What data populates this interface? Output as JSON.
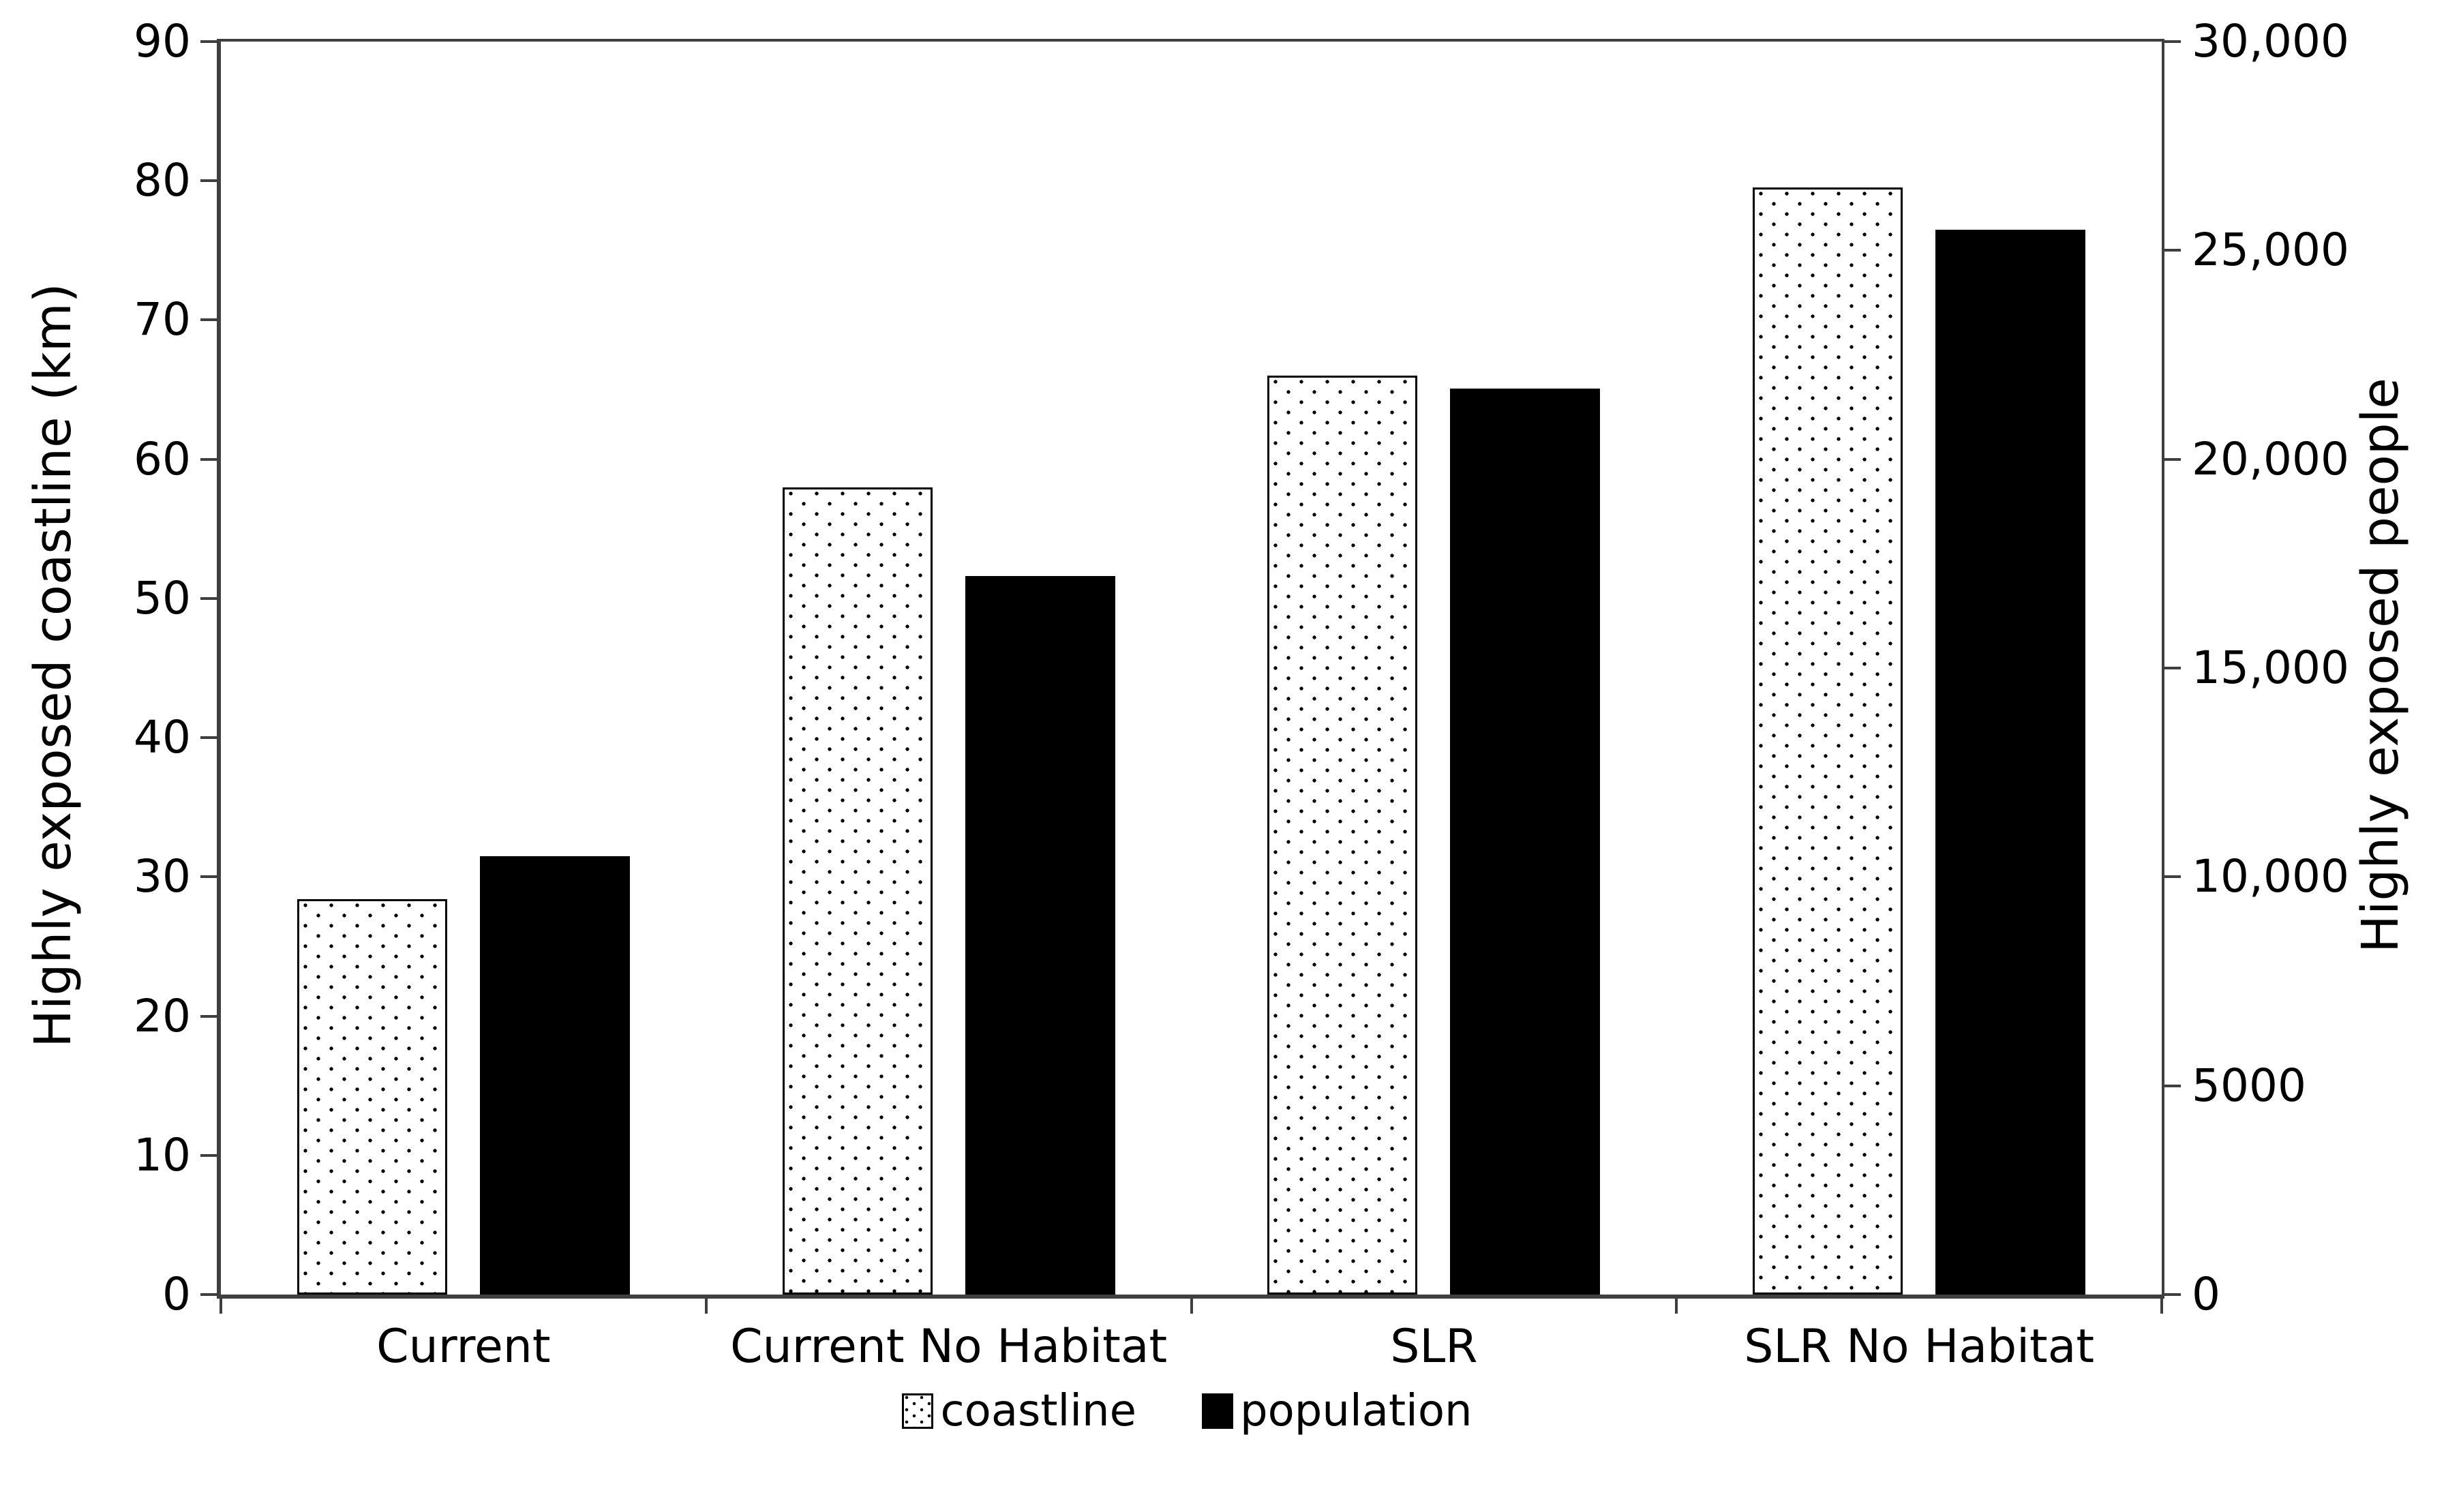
{
  "chart_data": {
    "type": "bar",
    "title": "",
    "categories": [
      "Current",
      "Current No Habitat",
      "SLR",
      "SLR No Habitat"
    ],
    "series": [
      {
        "name": "coastline",
        "axis": "left",
        "style": "dotted-white",
        "values": [
          28.4,
          58,
          66,
          79.5
        ],
        "units": "km"
      },
      {
        "name": "population",
        "axis": "right",
        "style": "solid-black",
        "values": [
          10500,
          17200,
          21700,
          25500
        ],
        "units": "people"
      }
    ],
    "left_axis": {
      "label": "Highly exposed coastline (km)",
      "min": 0,
      "max": 90,
      "tick_values": [
        0,
        10,
        20,
        30,
        40,
        50,
        60,
        70,
        80,
        90
      ],
      "tick_labels": [
        "0",
        "10",
        "20",
        "30",
        "40",
        "50",
        "60",
        "70",
        "80",
        "90"
      ]
    },
    "right_axis": {
      "label": "Highly exposed people",
      "min": 0,
      "max": 30000,
      "tick_values": [
        0,
        5000,
        10000,
        15000,
        20000,
        25000,
        30000
      ],
      "tick_labels": [
        "0",
        "5000",
        "10,000",
        "15,000",
        "20,000",
        "25,000",
        "30,000"
      ]
    },
    "legend": [
      "coastline",
      "population"
    ],
    "legend_position": "bottom-center",
    "grid": false
  },
  "colors": {
    "background": "#ffffff",
    "axis_line": "#3f3f3f",
    "bar_solid_fill": "#000000",
    "bar_dotted_fill": "#ffffff",
    "bar_border": "#000000",
    "text": "#000000"
  }
}
